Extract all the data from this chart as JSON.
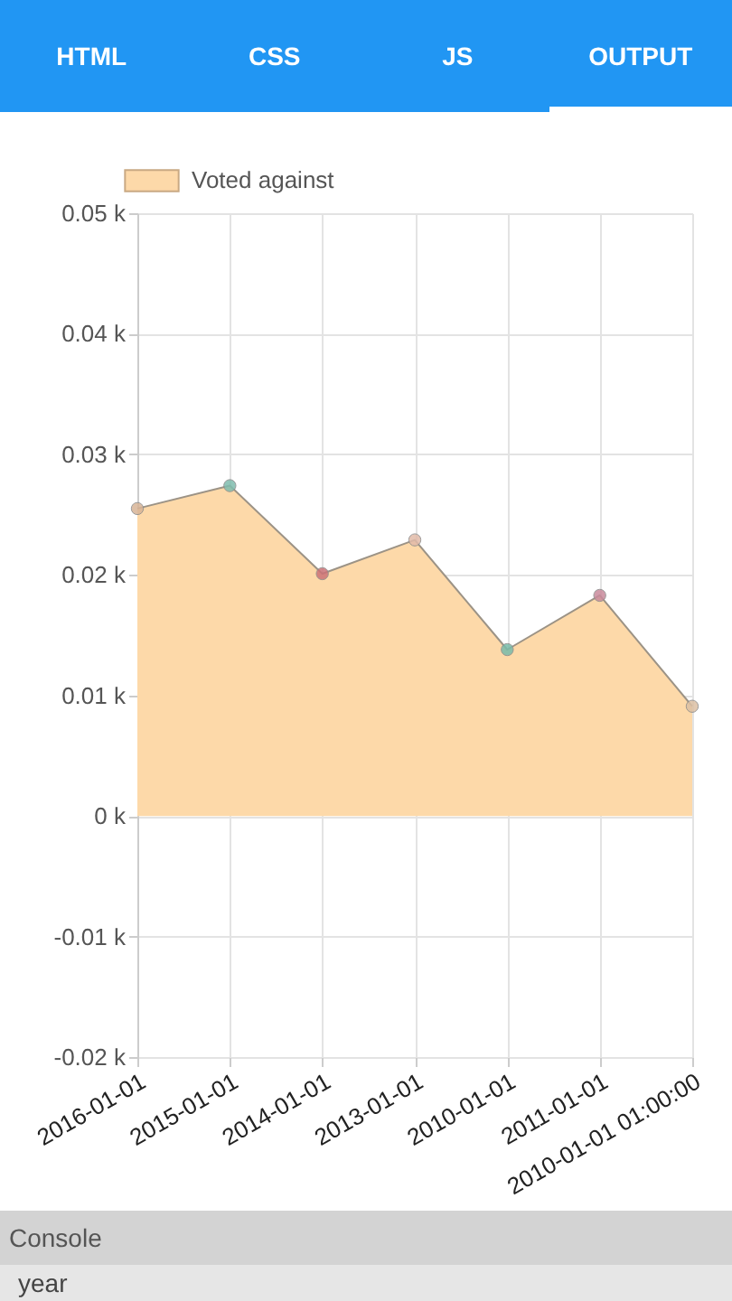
{
  "chart_data": {
    "type": "area",
    "categories": [
      "2016-01-01",
      "2015-01-01",
      "2014-01-01",
      "2013-01-01",
      "2010-01-01",
      "2011-01-01",
      "2010-01-01 01:00:00"
    ],
    "series": [
      {
        "name": "Voted against",
        "color": "#fdd9a9",
        "values": [
          25.5,
          27.4,
          20.1,
          22.9,
          13.8,
          18.3,
          9.1
        ],
        "colors": [
          "#d8b497",
          "#7fbdae",
          "#cc7377",
          "#e2bba9",
          "#79bba9",
          "#c98a9c",
          "#dcc0a4"
        ]
      }
    ],
    "ylim": [
      -20,
      50
    ],
    "yticks": [
      {
        "value": -20,
        "label": "-0.02 k"
      },
      {
        "value": -10,
        "label": "-0.01 k"
      },
      {
        "value": 0,
        "label": "0 k"
      },
      {
        "value": 10,
        "label": "0.01 k"
      },
      {
        "value": 20,
        "label": "0.02 k"
      },
      {
        "value": 30,
        "label": "0.03 k"
      },
      {
        "value": 40,
        "label": "0.04 k"
      },
      {
        "value": 50,
        "label": "0.05 k"
      }
    ],
    "grid": true,
    "legend": "top",
    "marker": "circle",
    "annotations": [
      "HTML",
      "CSS",
      "JS",
      "OUTPUT",
      "Console",
      "year"
    ]
  }
}
